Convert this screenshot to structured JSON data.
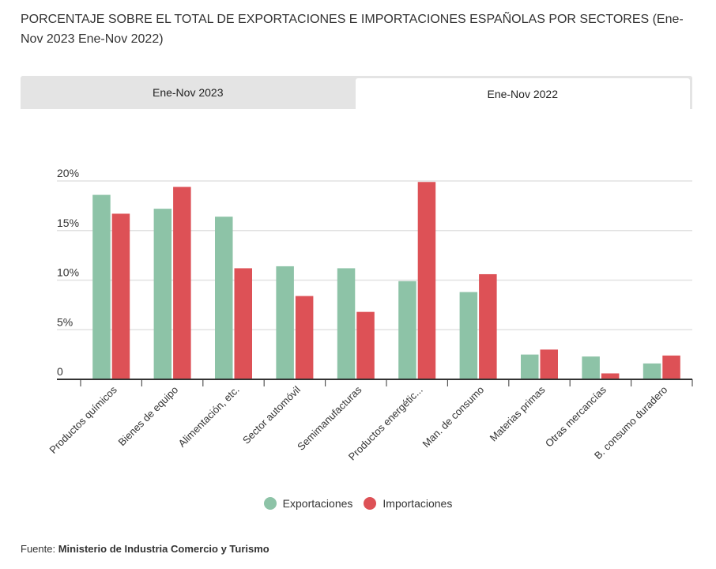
{
  "title": "PORCENTAJE SOBRE EL TOTAL DE EXPORTACIONES E IMPORTACIONES ESPAÑOLAS POR SECTORES (Ene-Nov 2023 Ene-Nov 2022)",
  "tabs": [
    {
      "label": "Ene-Nov 2023",
      "active": false
    },
    {
      "label": "Ene-Nov 2022",
      "active": true
    }
  ],
  "source": {
    "label": "Fuente:",
    "value": "Ministerio de Industria Comercio y Turismo"
  },
  "chart_data": {
    "type": "bar",
    "categories": [
      "Productos químicos",
      "Bienes de equipo",
      "Alimentación, etc.",
      "Sector automóvil",
      "Semimanufacturas",
      "Productos energétic...",
      "Man. de consumo",
      "Materias primas",
      "Otras mercancías",
      "B. consumo duradero"
    ],
    "series": [
      {
        "name": "Exportaciones",
        "color": "#8dc3a7",
        "values": [
          18.6,
          17.2,
          16.4,
          11.4,
          11.2,
          9.9,
          8.8,
          2.5,
          2.3,
          1.6
        ]
      },
      {
        "name": "Importaciones",
        "color": "#dd5156",
        "values": [
          16.7,
          19.4,
          11.2,
          8.4,
          6.8,
          19.9,
          10.6,
          3.0,
          0.6,
          2.4
        ]
      }
    ],
    "yticks": [
      {
        "v": 0,
        "label": "0"
      },
      {
        "v": 5,
        "label": "5%"
      },
      {
        "v": 10,
        "label": "10%"
      },
      {
        "v": 15,
        "label": "15%"
      },
      {
        "v": 20,
        "label": "20%"
      }
    ],
    "ylim": [
      0,
      20
    ],
    "xlabel": "",
    "ylabel": "",
    "grid": true,
    "legend": "bottom"
  }
}
